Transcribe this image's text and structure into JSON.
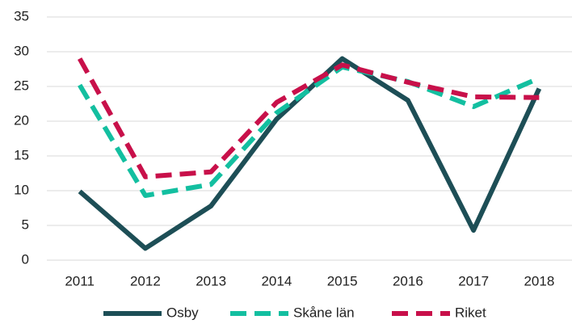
{
  "chart_data": {
    "type": "line",
    "categories": [
      "2011",
      "2012",
      "2013",
      "2014",
      "2015",
      "2016",
      "2017",
      "2018"
    ],
    "series": [
      {
        "name": "Osby",
        "color": "#1d4e56",
        "dash": "solid",
        "values": [
          9.9,
          1.7,
          7.8,
          20.3,
          29.0,
          23.0,
          4.3,
          24.7
        ]
      },
      {
        "name": "Skåne län",
        "color": "#13bfa0",
        "dash": "dashed",
        "values": [
          25.2,
          9.3,
          10.9,
          21.2,
          27.8,
          25.7,
          22.1,
          26.2
        ]
      },
      {
        "name": "Riket",
        "color": "#c8104a",
        "dash": "dashed",
        "values": [
          29.0,
          12.0,
          12.7,
          22.7,
          28.1,
          25.6,
          23.5,
          23.4
        ]
      }
    ],
    "ylim": [
      0,
      35
    ],
    "yticks": [
      0,
      5,
      10,
      15,
      20,
      25,
      30,
      35
    ],
    "grid": true,
    "legend": "bottom"
  }
}
